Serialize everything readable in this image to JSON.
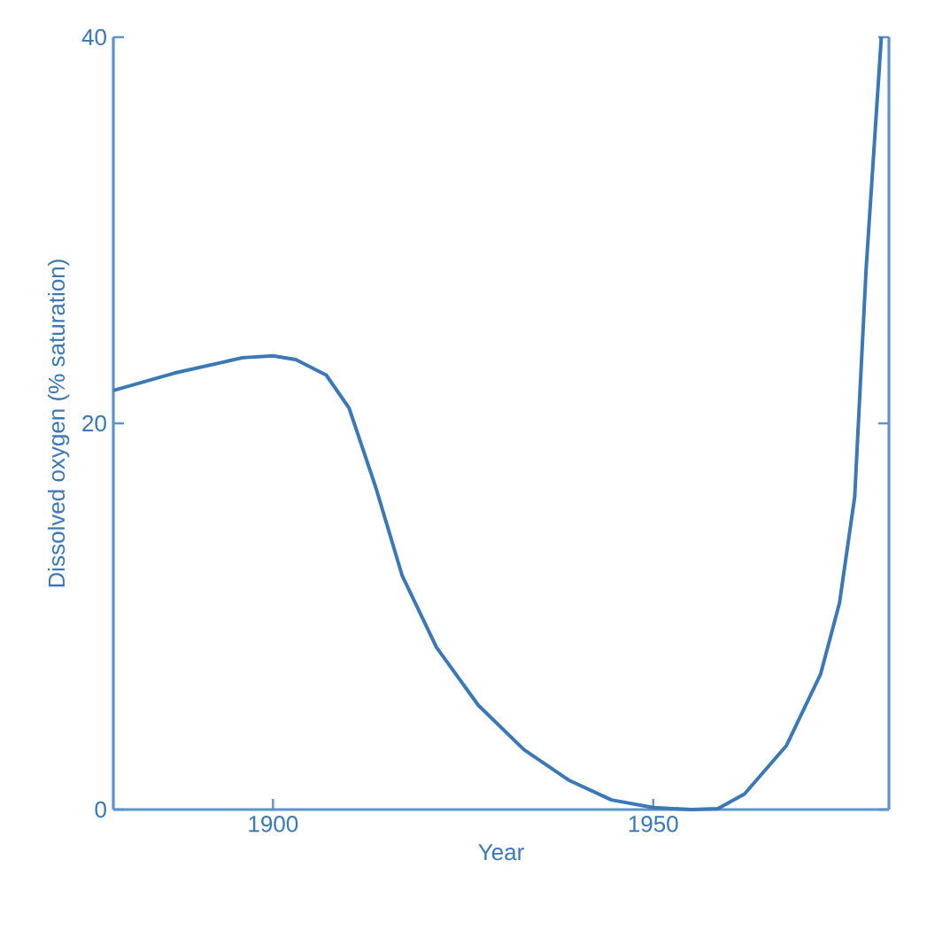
{
  "chart_data": {
    "type": "line",
    "xlabel": "Year",
    "ylabel": "Dissolved oxygen (% saturation)",
    "x": [
      1879,
      1887,
      1896,
      1900,
      1903,
      1907,
      1910,
      1913.5,
      1917,
      1921.5,
      1927,
      1933,
      1939,
      1944.5,
      1950,
      1955,
      1958.5,
      1962,
      1967.5,
      1972,
      1974.5,
      1976.5,
      1978,
      1980
    ],
    "series": [
      {
        "color": "#3b78b8",
        "values": [
          21.7,
          22.6,
          23.4,
          23.5,
          23.3,
          22.5,
          20.8,
          16.7,
          12.1,
          8.4,
          5.4,
          3.1,
          1.5,
          0.5,
          0.1,
          0,
          0.05,
          0.8,
          3.3,
          7,
          10.7,
          16.2,
          28,
          40
        ]
      }
    ],
    "xlim": [
      1879,
      1981
    ],
    "ylim": [
      0,
      40
    ],
    "xticks": [
      1900,
      1950
    ],
    "yticks": [
      0,
      20,
      40
    ],
    "grid": false,
    "marker": "none",
    "line_style": "solid"
  }
}
